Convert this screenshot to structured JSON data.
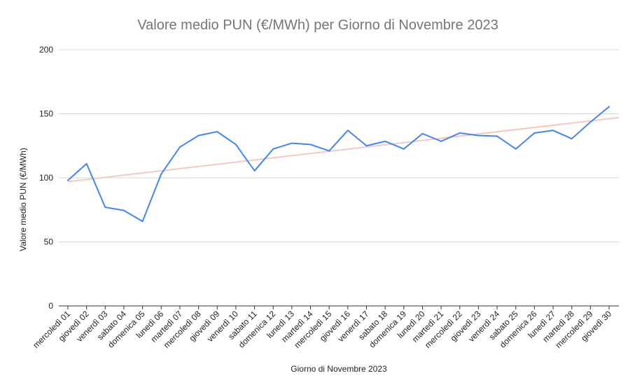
{
  "chart_data": {
    "type": "line",
    "title": "Valore medio PUN (€/MWh) per Giorno di Novembre 2023",
    "xlabel": "Giorno di Novembre 2023",
    "ylabel": "Valore medio PUN (€/MWh)",
    "ylim": [
      0,
      200
    ],
    "yticks": [
      0,
      50,
      100,
      150,
      200
    ],
    "grid": true,
    "categories": [
      "mercoledì 01",
      "giovedì 02",
      "venerdì 03",
      "sabato 04",
      "domenica 05",
      "lunedì 06",
      "martedì 07",
      "mercoledì 08",
      "giovedì 09",
      "venerdì 10",
      "sabato 11",
      "domenica 12",
      "lunedì 13",
      "martedì 14",
      "mercoledì 15",
      "giovedì 16",
      "venerdì 17",
      "sabato 18",
      "domenica 19",
      "lunedì 20",
      "martedì 21",
      "mercoledì 22",
      "giovedì 23",
      "venerdì 24",
      "sabato 25",
      "domenica 26",
      "lunedì 27",
      "martedì 28",
      "mercoledì 29",
      "giovedì 30"
    ],
    "series": [
      {
        "values": [
          98,
          111,
          77,
          74.5,
          66,
          103,
          124,
          133,
          136,
          126,
          105.5,
          122.5,
          127,
          126,
          121,
          137,
          125,
          128.5,
          122.5,
          134.5,
          128.5,
          135,
          133,
          132.5,
          122.5,
          135,
          137,
          130.5,
          143.5,
          155.5
        ],
        "color": "#4285f4"
      }
    ],
    "trendline": {
      "start": 97,
      "end": 147,
      "color": "#f4c7c3"
    }
  }
}
